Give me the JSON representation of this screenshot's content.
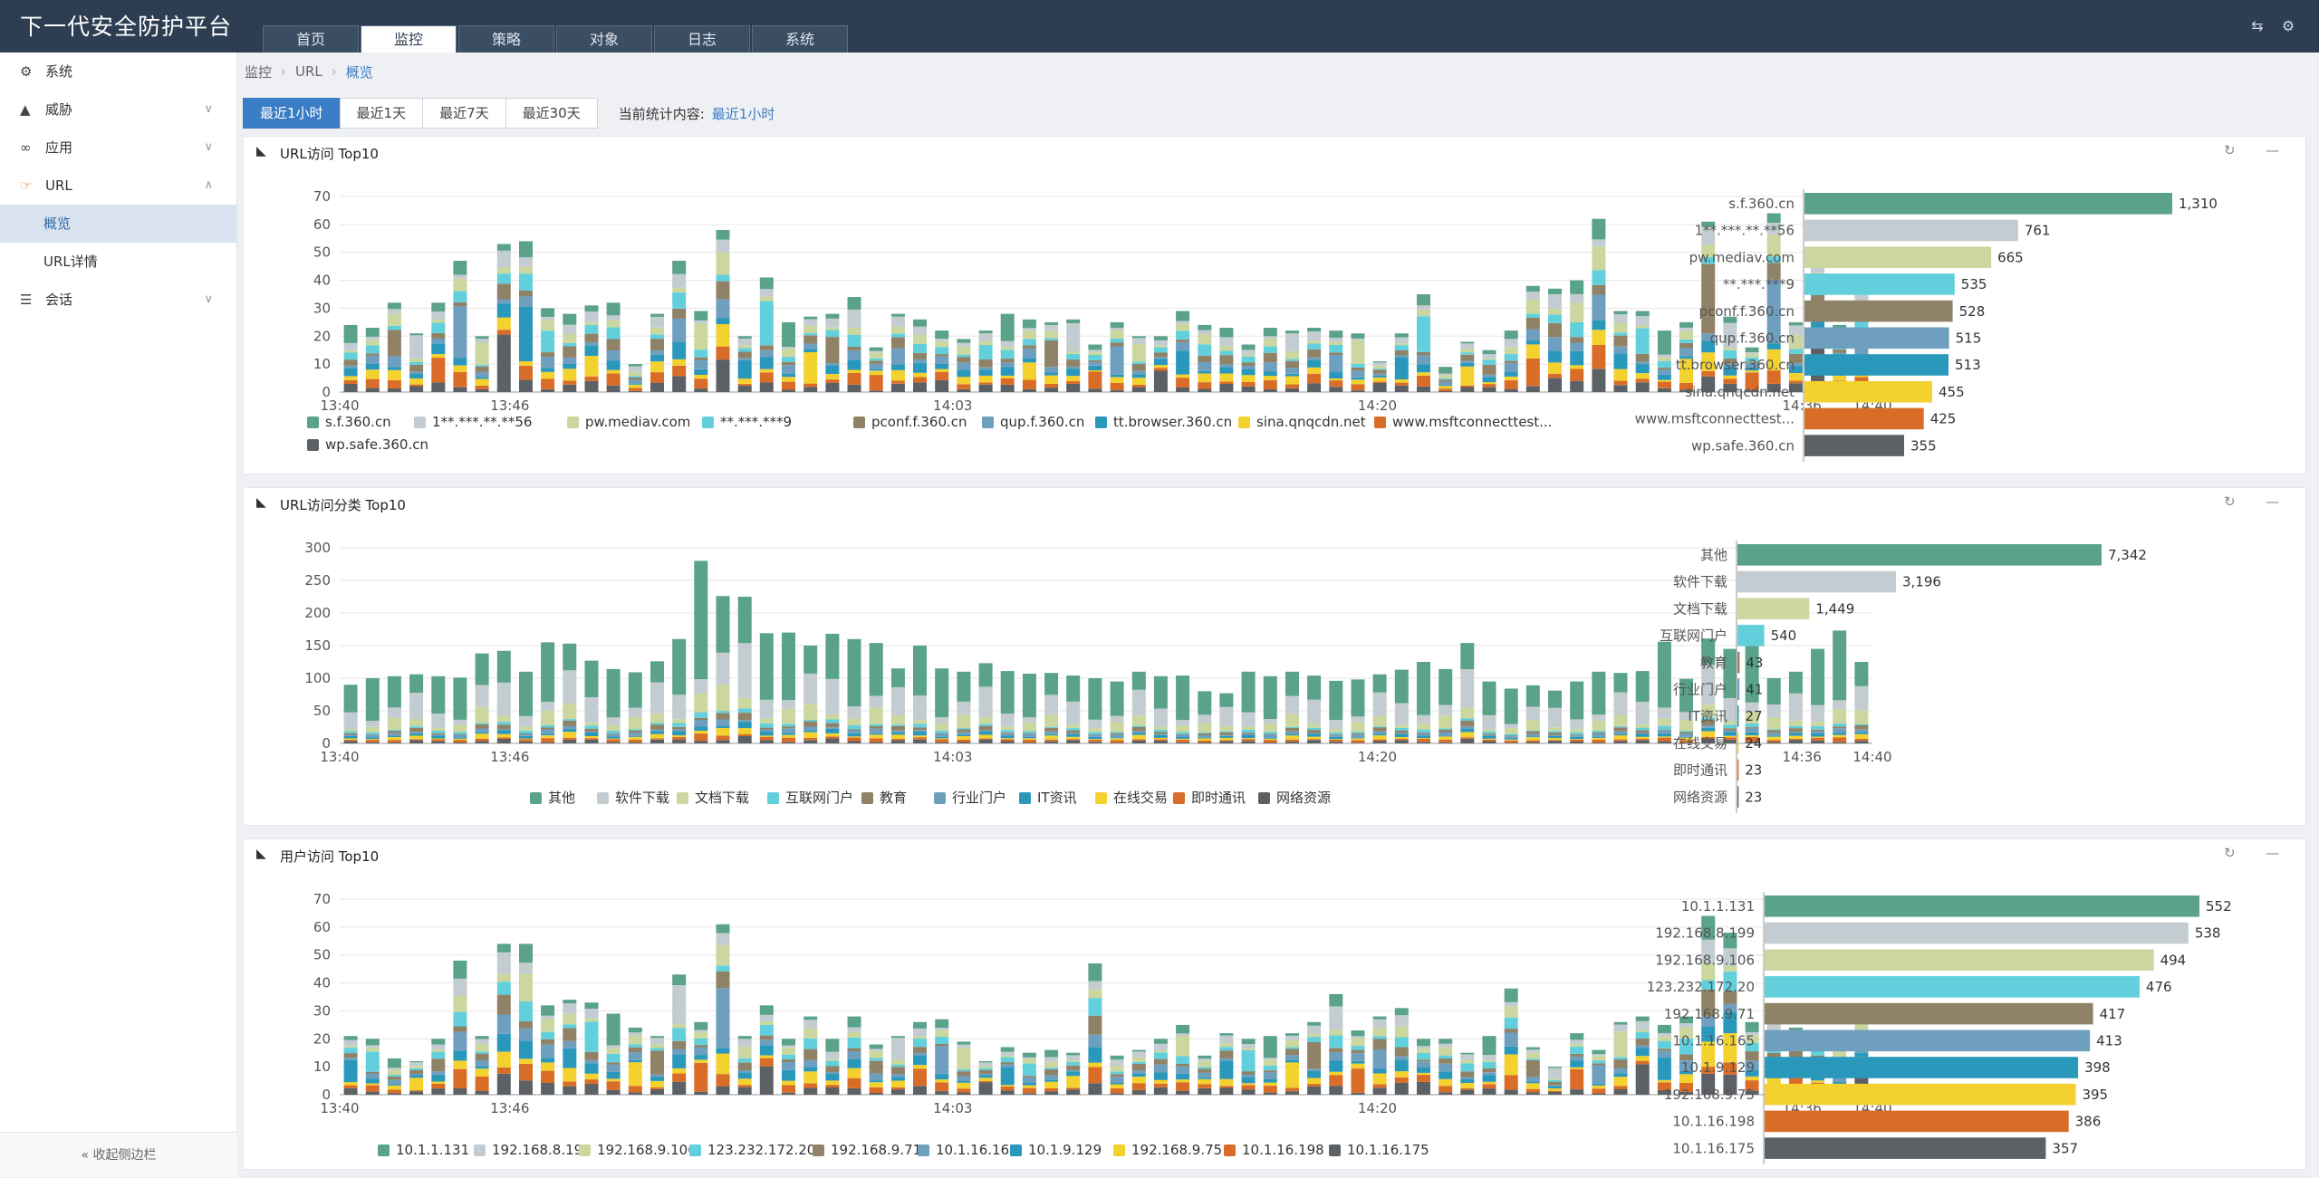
{
  "app": {
    "title": "下一代安全防护平台"
  },
  "tabs": [
    "首页",
    "监控",
    "策略",
    "对象",
    "日志",
    "系统"
  ],
  "sidebar": {
    "items": [
      {
        "label": "系统",
        "icon": "gears-icon",
        "chev": ""
      },
      {
        "label": "威胁",
        "icon": "warning-icon",
        "chev": "∨"
      },
      {
        "label": "应用",
        "icon": "glasses-icon",
        "chev": "∨"
      },
      {
        "label": "URL",
        "icon": "pointing-hand-icon",
        "chev": "∧"
      }
    ],
    "sub": [
      "概览",
      "URL详情"
    ],
    "session": {
      "label": "会话",
      "icon": "sliders-icon",
      "chev": "∨"
    },
    "collapse": "« 收起侧边栏"
  },
  "breadcrumb": [
    "监控",
    "URL",
    "概览"
  ],
  "time_filters": [
    "最近1小时",
    "最近1天",
    "最近7天",
    "最近30天"
  ],
  "stat": {
    "label": "当前统计内容:",
    "value": "最近1小时"
  },
  "colors": [
    "#5aa28a",
    "#c3ccd0",
    "#cbd79e",
    "#62d0dc",
    "#8f8266",
    "#6f9fbe",
    "#2a98bb",
    "#f3d12f",
    "#d96d28",
    "#5c6166"
  ],
  "panels": [
    {
      "title": "URL访问 Top10",
      "chart_data": {
        "type": "bar",
        "stacked": true,
        "ylim": [
          0,
          70
        ],
        "yticks": [
          0,
          10,
          20,
          30,
          40,
          50,
          60,
          70
        ],
        "xticks": [
          "13:40",
          "13:46",
          "14:03",
          "14:20",
          "14:36",
          "14:40"
        ],
        "legend": [
          "s.f.360.cn",
          "1**.***.**.**56",
          "pw.mediav.com",
          "**.***.***9",
          "pconf.f.360.cn",
          "qup.f.360.cn",
          "tt.browser.360.cn",
          "sina.qnqcdn.net",
          "www.msftconnecttest...",
          "wp.safe.360.cn"
        ],
        "totals": [
          24,
          23,
          32,
          21,
          32,
          47,
          20,
          53,
          54,
          30,
          28,
          31,
          32,
          10,
          28,
          47,
          29,
          58,
          20,
          41,
          25,
          27,
          28,
          34,
          16,
          28,
          26,
          22,
          19,
          22,
          28,
          26,
          25,
          26,
          17,
          25,
          20,
          20,
          29,
          24,
          23,
          17,
          23,
          22,
          23,
          22,
          21,
          11,
          21,
          35,
          9,
          18,
          15,
          22,
          38,
          37,
          40,
          62,
          29,
          29,
          22,
          25,
          61,
          27,
          16,
          64,
          25,
          52,
          24,
          37
        ],
        "bar_categories": [
          "s.f.360.cn",
          "1**.***.**.**56",
          "pw.mediav.com",
          "**.***.***9",
          "pconf.f.360.cn",
          "qup.f.360.cn",
          "tt.browser.360.cn",
          "sina.qnqcdn.net",
          "www.msftconnecttest...",
          "wp.safe.360.cn"
        ],
        "bar_values": [
          1310,
          761,
          665,
          535,
          528,
          515,
          513,
          455,
          425,
          355
        ]
      }
    },
    {
      "title": "URL访问分类 Top10",
      "chart_data": {
        "type": "bar",
        "stacked": true,
        "ylim": [
          0,
          300
        ],
        "yticks": [
          0,
          50,
          100,
          150,
          200,
          250,
          300
        ],
        "xticks": [
          "13:40",
          "13:46",
          "14:03",
          "14:20",
          "14:36",
          "14:40"
        ],
        "legend": [
          "其他",
          "软件下载",
          "文档下载",
          "互联网门户",
          "教育",
          "行业门户",
          "IT资讯",
          "在线交易",
          "即时通讯",
          "网络资源"
        ],
        "totals": [
          90,
          100,
          103,
          106,
          103,
          101,
          138,
          142,
          110,
          155,
          153,
          127,
          114,
          109,
          126,
          160,
          280,
          226,
          225,
          169,
          170,
          150,
          168,
          160,
          154,
          115,
          150,
          115,
          110,
          123,
          111,
          107,
          108,
          104,
          100,
          95,
          110,
          103,
          104,
          80,
          77,
          110,
          103,
          110,
          104,
          96,
          98,
          106,
          113,
          125,
          114,
          154,
          95,
          84,
          89,
          81,
          95,
          110,
          108,
          111,
          156,
          99,
          161,
          145,
          180,
          100,
          110,
          145,
          173,
          125
        ],
        "bar_categories": [
          "其他",
          "软件下载",
          "文档下载",
          "互联网门户",
          "教育",
          "行业门户",
          "IT资讯",
          "在线交易",
          "即时通讯",
          "网络资源"
        ],
        "bar_values": [
          7342,
          3196,
          1449,
          540,
          43,
          41,
          27,
          24,
          23,
          23
        ]
      }
    },
    {
      "title": "用户访问 Top10",
      "chart_data": {
        "type": "bar",
        "stacked": true,
        "ylim": [
          0,
          70
        ],
        "yticks": [
          0,
          10,
          20,
          30,
          40,
          50,
          60,
          70
        ],
        "xticks": [
          "13:40",
          "13:46",
          "14:03",
          "14:20",
          "14:36",
          "14:40"
        ],
        "legend": [
          "10.1.1.131",
          "192.168.8.199",
          "192.168.9.106",
          "123.232.172.20",
          "192.168.9.71",
          "10.1.16.165",
          "10.1.9.129",
          "192.168.9.75",
          "10.1.16.198",
          "10.1.16.175"
        ],
        "totals": [
          21,
          20,
          13,
          12,
          20,
          48,
          21,
          54,
          54,
          32,
          34,
          33,
          29,
          24,
          21,
          43,
          26,
          61,
          21,
          32,
          20,
          28,
          20,
          28,
          18,
          21,
          26,
          27,
          19,
          12,
          17,
          15,
          16,
          15,
          47,
          14,
          16,
          20,
          25,
          14,
          22,
          20,
          21,
          22,
          26,
          36,
          23,
          28,
          31,
          20,
          20,
          15,
          21,
          38,
          17,
          10,
          22,
          16,
          26,
          28,
          25,
          28,
          64,
          58,
          26,
          29,
          24,
          22,
          18,
          30
        ],
        "bar_categories": [
          "10.1.1.131",
          "192.168.8.199",
          "192.168.9.106",
          "123.232.172.20",
          "192.168.9.71",
          "10.1.16.165",
          "10.1.9.129",
          "192.168.9.75",
          "10.1.16.198",
          "10.1.16.175"
        ],
        "bar_values": [
          552,
          538,
          494,
          476,
          417,
          413,
          398,
          395,
          386,
          357
        ]
      }
    }
  ]
}
